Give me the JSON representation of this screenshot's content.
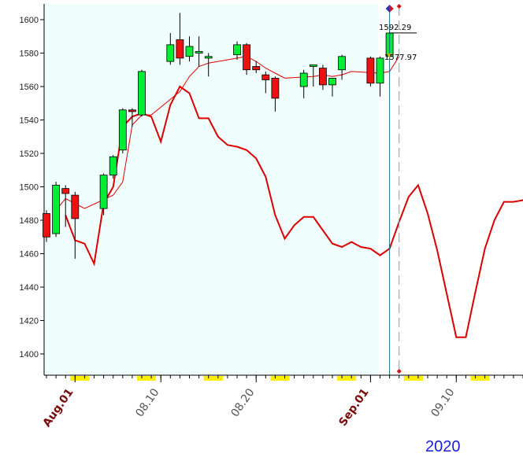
{
  "chart_data": {
    "type": "candlestick",
    "year_label": "2020",
    "ylim": [
      1388,
      1610
    ],
    "y_ticks": [
      1400,
      1420,
      1440,
      1460,
      1480,
      1500,
      1520,
      1540,
      1560,
      1580,
      1600
    ],
    "x_range": [
      "2020-07-29",
      "2020-09-20"
    ],
    "x_tick_labels": [
      {
        "label": "Aug.01",
        "date": "2020-08-01",
        "month_start": true
      },
      {
        "label": "08.10",
        "date": "2020-08-10",
        "month_start": false
      },
      {
        "label": "08.20",
        "date": "2020-08-20",
        "month_start": false
      },
      {
        "label": "Sep.01",
        "date": "2020-09-01",
        "month_start": true
      },
      {
        "label": "09.10",
        "date": "2020-09-10",
        "month_start": false
      }
    ],
    "weekend_markers": [
      [
        "2020-08-01",
        "2020-08-02"
      ],
      [
        "2020-08-08",
        "2020-08-09"
      ],
      [
        "2020-08-15",
        "2020-08-16"
      ],
      [
        "2020-08-22",
        "2020-08-23"
      ],
      [
        "2020-08-29",
        "2020-08-30"
      ],
      [
        "2020-09-05",
        "2020-09-06"
      ],
      [
        "2020-09-12",
        "2020-09-13"
      ]
    ],
    "candles": [
      {
        "date": "2020-07-29",
        "open": 1484,
        "high": 1486,
        "low": 1467,
        "close": 1470
      },
      {
        "date": "2020-07-30",
        "open": 1472,
        "high": 1503,
        "low": 1470,
        "close": 1501
      },
      {
        "date": "2020-07-31",
        "open": 1499,
        "high": 1501,
        "low": 1476,
        "close": 1496
      },
      {
        "date": "2020-08-01",
        "open": 1495,
        "high": 1497,
        "low": 1457,
        "close": 1481
      },
      {
        "date": "2020-08-04",
        "open": 1487,
        "high": 1508,
        "low": 1483,
        "close": 1507
      },
      {
        "date": "2020-08-05",
        "open": 1507,
        "high": 1519,
        "low": 1505,
        "close": 1518
      },
      {
        "date": "2020-08-06",
        "open": 1522,
        "high": 1547,
        "low": 1520,
        "close": 1546
      },
      {
        "date": "2020-08-07",
        "open": 1546,
        "high": 1547,
        "low": 1536,
        "close": 1545
      },
      {
        "date": "2020-08-08",
        "open": 1543,
        "high": 1570,
        "low": 1542,
        "close": 1569
      },
      {
        "date": "2020-08-11",
        "open": 1575,
        "high": 1592,
        "low": 1573,
        "close": 1585
      },
      {
        "date": "2020-08-12",
        "open": 1588,
        "high": 1604,
        "low": 1573,
        "close": 1577
      },
      {
        "date": "2020-08-13",
        "open": 1578,
        "high": 1590,
        "low": 1575,
        "close": 1584
      },
      {
        "date": "2020-08-14",
        "open": 1580,
        "high": 1590,
        "low": 1572,
        "close": 1581
      },
      {
        "date": "2020-08-15",
        "open": 1577,
        "high": 1580,
        "low": 1566,
        "close": 1578
      },
      {
        "date": "2020-08-18",
        "open": 1579,
        "high": 1587,
        "low": 1576,
        "close": 1585
      },
      {
        "date": "2020-08-19",
        "open": 1585,
        "high": 1586,
        "low": 1567,
        "close": 1570
      },
      {
        "date": "2020-08-20",
        "open": 1572,
        "high": 1575,
        "low": 1568,
        "close": 1570
      },
      {
        "date": "2020-08-21",
        "open": 1567,
        "high": 1569,
        "low": 1556,
        "close": 1564
      },
      {
        "date": "2020-08-22",
        "open": 1565,
        "high": 1566,
        "low": 1545,
        "close": 1553
      },
      {
        "date": "2020-08-25",
        "open": 1560,
        "high": 1570,
        "low": 1553,
        "close": 1568
      },
      {
        "date": "2020-08-26",
        "open": 1572,
        "high": 1573,
        "low": 1560,
        "close": 1573
      },
      {
        "date": "2020-08-27",
        "open": 1571,
        "high": 1573,
        "low": 1558,
        "close": 1561
      },
      {
        "date": "2020-08-28",
        "open": 1561,
        "high": 1565,
        "low": 1554,
        "close": 1565
      },
      {
        "date": "2020-08-29",
        "open": 1570,
        "high": 1579,
        "low": 1564,
        "close": 1578
      },
      {
        "date": "2020-09-01",
        "open": 1577,
        "high": 1578,
        "low": 1560,
        "close": 1562
      },
      {
        "date": "2020-09-02",
        "open": 1562,
        "high": 1578,
        "low": 1554,
        "close": 1577
      },
      {
        "date": "2020-09-03",
        "open": 1578,
        "high": 1595,
        "low": 1576,
        "close": 1592
      }
    ],
    "ma_line": {
      "color": "#e00000",
      "points": [
        [
          "2020-07-30",
          1486
        ],
        [
          "2020-07-31",
          1493
        ],
        [
          "2020-08-01",
          1490
        ],
        [
          "2020-08-02",
          1487
        ],
        [
          "2020-08-05",
          1495
        ],
        [
          "2020-08-06",
          1503
        ],
        [
          "2020-08-07",
          1537
        ],
        [
          "2020-08-08",
          1543
        ],
        [
          "2020-08-09",
          1543
        ],
        [
          "2020-08-12",
          1557
        ],
        [
          "2020-08-13",
          1566
        ],
        [
          "2020-08-14",
          1572
        ],
        [
          "2020-08-15",
          1574
        ],
        [
          "2020-08-16",
          1575
        ],
        [
          "2020-08-19",
          1578
        ],
        [
          "2020-08-20",
          1575
        ],
        [
          "2020-08-21",
          1571
        ],
        [
          "2020-08-22",
          1568
        ],
        [
          "2020-08-23",
          1565
        ],
        [
          "2020-08-26",
          1566
        ],
        [
          "2020-08-27",
          1567
        ],
        [
          "2020-08-28",
          1566
        ],
        [
          "2020-08-29",
          1567
        ],
        [
          "2020-08-30",
          1569
        ],
        [
          "2020-09-02",
          1568
        ],
        [
          "2020-09-03",
          1569
        ],
        [
          "2020-09-04",
          1578
        ]
      ]
    },
    "forecast_line": {
      "color": "#dd0000",
      "points": [
        [
          "2020-07-31",
          1483
        ],
        [
          "2020-08-01",
          1468
        ],
        [
          "2020-08-02",
          1466
        ],
        [
          "2020-08-03",
          1454
        ],
        [
          "2020-08-04",
          1490
        ],
        [
          "2020-08-05",
          1500
        ],
        [
          "2020-08-06",
          1536
        ],
        [
          "2020-08-07",
          1542
        ],
        [
          "2020-08-08",
          1544
        ],
        [
          "2020-08-09",
          1542
        ],
        [
          "2020-08-10",
          1527
        ],
        [
          "2020-08-11",
          1549
        ],
        [
          "2020-08-12",
          1560
        ],
        [
          "2020-08-13",
          1556
        ],
        [
          "2020-08-14",
          1541
        ],
        [
          "2020-08-15",
          1541
        ],
        [
          "2020-08-16",
          1530
        ],
        [
          "2020-08-17",
          1525
        ],
        [
          "2020-08-18",
          1524
        ],
        [
          "2020-08-19",
          1522
        ],
        [
          "2020-08-20",
          1517
        ],
        [
          "2020-08-21",
          1506
        ],
        [
          "2020-08-22",
          1483
        ],
        [
          "2020-08-23",
          1469
        ],
        [
          "2020-08-24",
          1477
        ],
        [
          "2020-08-25",
          1482
        ],
        [
          "2020-08-26",
          1482
        ],
        [
          "2020-08-27",
          1474
        ],
        [
          "2020-08-28",
          1466
        ],
        [
          "2020-08-29",
          1464
        ],
        [
          "2020-08-30",
          1467
        ],
        [
          "2020-08-31",
          1464
        ],
        [
          "2020-09-01",
          1463
        ],
        [
          "2020-09-02",
          1459
        ],
        [
          "2020-09-03",
          1463
        ],
        [
          "2020-09-04",
          1479
        ],
        [
          "2020-09-05",
          1494
        ],
        [
          "2020-09-06",
          1501
        ],
        [
          "2020-09-07",
          1484
        ],
        [
          "2020-09-08",
          1462
        ],
        [
          "2020-09-09",
          1436
        ],
        [
          "2020-09-10",
          1410
        ],
        [
          "2020-09-11",
          1410
        ],
        [
          "2020-09-12",
          1437
        ],
        [
          "2020-09-13",
          1463
        ],
        [
          "2020-09-14",
          1480
        ],
        [
          "2020-09-15",
          1491
        ],
        [
          "2020-09-16",
          1491
        ],
        [
          "2020-09-17",
          1492
        ],
        [
          "2020-09-18",
          1499
        ],
        [
          "2020-09-19",
          1507
        ],
        [
          "2020-09-20",
          1520
        ]
      ]
    },
    "annotations": [
      {
        "label": "1592.29",
        "value": 1592.29
      },
      {
        "label": "1577.97",
        "value": 1577.97
      }
    ],
    "current_date": "2020-09-03",
    "forecast_date": "2020-09-04",
    "colors": {
      "plot_background": "#f0fdfd",
      "up": "#00ee33",
      "down": "#ee1111",
      "weekend": "#ffee00",
      "month_label": "#7a0a0a",
      "day_label": "#555555",
      "year_label": "#1a20d8"
    }
  }
}
